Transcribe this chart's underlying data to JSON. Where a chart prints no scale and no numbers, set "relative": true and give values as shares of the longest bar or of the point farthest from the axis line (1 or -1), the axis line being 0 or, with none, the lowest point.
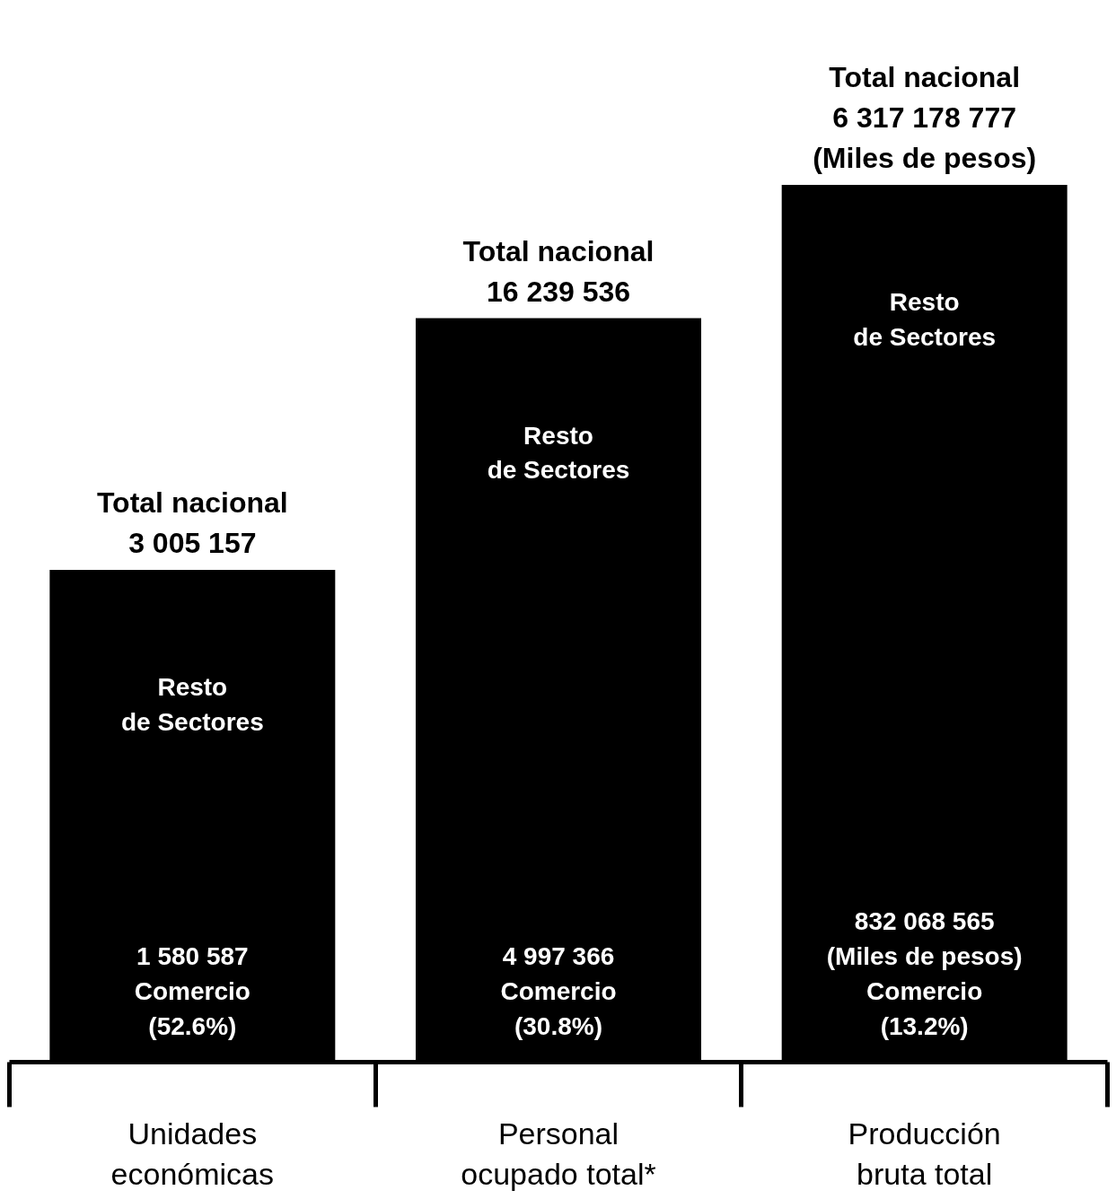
{
  "chart_data": {
    "type": "bar",
    "relative": true,
    "color": "#000000",
    "categories": [
      "Unidades\neconómicas",
      "Personal\nocupado total*",
      "Producción\nbruta total"
    ],
    "values": [
      0.561,
      0.848,
      1
    ],
    "annotations": [
      {
        "text": "Total nacional\n3 005 157",
        "x": "Unidades\neconómicas",
        "y": 0.561
      },
      {
        "text": "Total nacional\n16 239 536",
        "x": "Personal\nocupado total*",
        "y": 0.848
      },
      {
        "text": "Total nacional\n6 317 178 777\n(Miles de pesos)",
        "x": "Producción\nbruta total",
        "y": 1
      },
      "Resto\nde Sectores",
      "Resto\nde Sectores",
      "Resto\nde Sectores",
      "1 580 587\nComercio\n(52.6%)",
      "4 997 366\nComercio\n(30.8%)",
      "832 068 565\n(Miles de pesos)\nComercio\n(13.2%)"
    ]
  }
}
